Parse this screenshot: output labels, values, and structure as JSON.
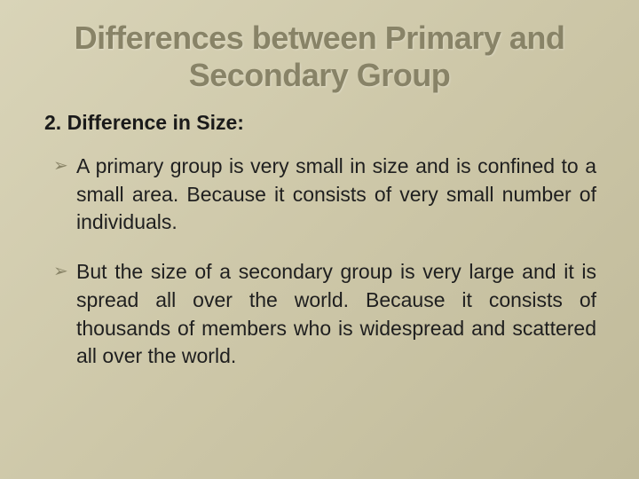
{
  "slide": {
    "title": "Differences between Primary and Secondary Group",
    "subheading_number": "2.",
    "subheading_text": "Difference in Size:",
    "bullets": [
      "A primary group is very small in size and is confined to a small area. Because it consists of very small number of individuals.",
      "But the size of a secondary group is very large and it is spread all over the world. Because it consists of thousands of members who is widespread and scattered all over the world."
    ],
    "colors": {
      "background_start": "#d9d4b8",
      "background_end": "#c0ba9a",
      "title_color": "#888367",
      "body_text": "#1f1f1f",
      "bullet_marker": "#8a8568"
    },
    "typography": {
      "title_fontsize": 36,
      "title_weight": "bold",
      "subheading_fontsize": 23,
      "subheading_weight": "bold",
      "body_fontsize": 23,
      "font_family": "Arial"
    },
    "bullet_glyph": "➢"
  }
}
